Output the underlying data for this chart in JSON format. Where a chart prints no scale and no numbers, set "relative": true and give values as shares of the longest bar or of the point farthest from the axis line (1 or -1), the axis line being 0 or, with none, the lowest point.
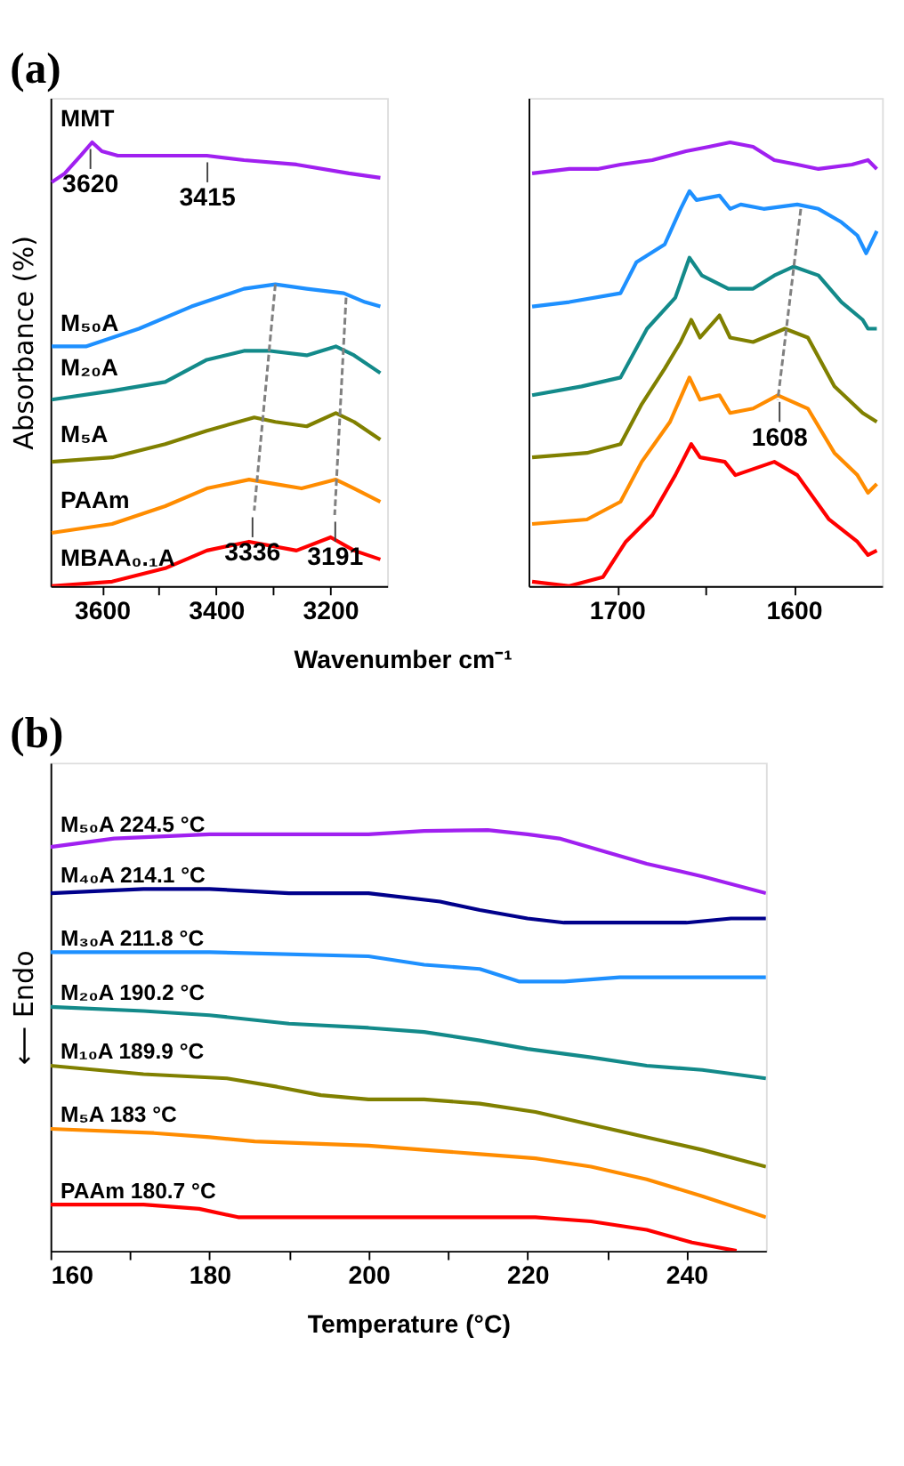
{
  "chart_data": [
    {
      "type": "line",
      "title": "(a)",
      "ylabel": "Absorbance (%)",
      "xlabel": "Wavenumber cm⁻¹",
      "relative": true,
      "legend": false,
      "marker": "none",
      "line_style": "solid",
      "grid": false,
      "xlim": [
        3690,
        3100
      ],
      "xticks": [
        3600,
        {
          "value": 3500,
          "label": null
        },
        3400,
        {
          "value": 3300,
          "label": null
        },
        3200
      ],
      "series": [
        {
          "name": "MMT",
          "color": "#a020f0",
          "x": [
            3688,
            3665,
            3637,
            3617,
            3600,
            3572,
            3489,
            3416,
            3351,
            3259,
            3167,
            3112
          ],
          "values": [
            0.91,
            0.93,
            0.97,
            1.0,
            0.98,
            0.97,
            0.97,
            0.97,
            0.96,
            0.95,
            0.93,
            0.92
          ]
        },
        {
          "name": "M₅₀A",
          "color": "#1e90ff",
          "x": [
            3688,
            3628,
            3535,
            3443,
            3351,
            3296,
            3241,
            3176,
            3139,
            3112
          ],
          "values": [
            0.54,
            0.54,
            0.58,
            0.63,
            0.67,
            0.68,
            0.67,
            0.66,
            0.64,
            0.63
          ]
        },
        {
          "name": "M₂₀A",
          "color": "#138a8a",
          "x": [
            3688,
            3582,
            3489,
            3416,
            3351,
            3305,
            3241,
            3190,
            3158,
            3112
          ],
          "values": [
            0.42,
            0.44,
            0.46,
            0.51,
            0.53,
            0.53,
            0.52,
            0.54,
            0.52,
            0.48
          ]
        },
        {
          "name": "M₅A",
          "color": "#808000",
          "x": [
            3688,
            3582,
            3489,
            3416,
            3333,
            3296,
            3241,
            3190,
            3158,
            3112
          ],
          "values": [
            0.28,
            0.29,
            0.32,
            0.35,
            0.38,
            0.37,
            0.36,
            0.39,
            0.37,
            0.33
          ]
        },
        {
          "name": "PAAm",
          "color": "#ff8c00",
          "x": [
            3688,
            3582,
            3489,
            3416,
            3342,
            3296,
            3250,
            3190,
            3158,
            3112
          ],
          "values": [
            0.12,
            0.14,
            0.18,
            0.22,
            0.24,
            0.23,
            0.22,
            0.24,
            0.22,
            0.19
          ]
        },
        {
          "name": "MBAA₀.₁A",
          "color": "#ff0000",
          "x": [
            3688,
            3582,
            3489,
            3416,
            3342,
            3259,
            3199,
            3158,
            3112
          ],
          "values": [
            0.0,
            0.01,
            0.04,
            0.08,
            0.1,
            0.08,
            0.11,
            0.08,
            0.06
          ]
        },
        {
          "color": "#808080",
          "line_style": "dashed",
          "x": [
            3296,
            3333
          ],
          "values": [
            0.68,
            0.17
          ]
        },
        {
          "color": "#808080",
          "line_style": "dashed",
          "x": [
            3172,
            3192
          ],
          "values": [
            0.65,
            0.16
          ]
        }
      ],
      "annotations": [
        {
          "text": "3620",
          "x": 3620,
          "y": 1.0
        },
        {
          "text": "3415",
          "x": 3415,
          "y": 0.97
        },
        {
          "text": "3336",
          "x": 3336,
          "y": 0.17
        },
        {
          "text": "3191",
          "x": 3191,
          "y": 0.16
        }
      ]
    },
    {
      "type": "line",
      "relative": true,
      "legend": false,
      "marker": "none",
      "line_style": "solid",
      "grid": false,
      "xlim": [
        1750,
        1550
      ],
      "xticks": [
        1700,
        {
          "value": 1650,
          "label": null
        },
        1600
      ],
      "series": [
        {
          "color": "#a020f0",
          "x": [
            1748,
            1727,
            1711,
            1698,
            1680,
            1661,
            1648,
            1636,
            1623,
            1611,
            1598,
            1586,
            1567,
            1558,
            1553
          ],
          "values": [
            0.93,
            0.94,
            0.94,
            0.95,
            0.96,
            0.98,
            0.99,
            1.0,
            0.99,
            0.96,
            0.95,
            0.94,
            0.95,
            0.96,
            0.94
          ]
        },
        {
          "color": "#1e90ff",
          "x": [
            1748,
            1727,
            1698,
            1689,
            1673,
            1664,
            1659,
            1655,
            1642,
            1636,
            1630,
            1617,
            1598,
            1586,
            1573,
            1564,
            1559,
            1553
          ],
          "values": [
            0.63,
            0.64,
            0.66,
            0.73,
            0.77,
            0.85,
            0.89,
            0.87,
            0.88,
            0.85,
            0.86,
            0.85,
            0.86,
            0.85,
            0.82,
            0.79,
            0.75,
            0.8
          ]
        },
        {
          "color": "#138a8a",
          "x": [
            1748,
            1720,
            1698,
            1683,
            1667,
            1659,
            1652,
            1637,
            1623,
            1611,
            1600,
            1586,
            1573,
            1561,
            1558,
            1553
          ],
          "values": [
            0.43,
            0.45,
            0.47,
            0.58,
            0.65,
            0.74,
            0.7,
            0.67,
            0.67,
            0.7,
            0.72,
            0.7,
            0.64,
            0.6,
            0.58,
            0.58
          ]
        },
        {
          "color": "#808000",
          "x": [
            1748,
            1717,
            1698,
            1686,
            1673,
            1664,
            1658,
            1653,
            1642,
            1636,
            1623,
            1605,
            1592,
            1577,
            1561,
            1553
          ],
          "values": [
            0.29,
            0.3,
            0.32,
            0.41,
            0.49,
            0.55,
            0.6,
            0.56,
            0.61,
            0.56,
            0.55,
            0.58,
            0.56,
            0.45,
            0.39,
            0.37
          ]
        },
        {
          "color": "#ff8c00",
          "x": [
            1748,
            1717,
            1698,
            1686,
            1670,
            1659,
            1653,
            1642,
            1636,
            1623,
            1609,
            1592,
            1577,
            1564,
            1558,
            1553
          ],
          "values": [
            0.14,
            0.15,
            0.19,
            0.28,
            0.37,
            0.47,
            0.42,
            0.43,
            0.39,
            0.4,
            0.43,
            0.4,
            0.3,
            0.25,
            0.21,
            0.23
          ]
        },
        {
          "color": "#ff0000",
          "x": [
            1748,
            1727,
            1708,
            1695,
            1680,
            1667,
            1658,
            1653,
            1639,
            1633,
            1611,
            1598,
            1580,
            1564,
            1558,
            1553
          ],
          "values": [
            0.01,
            0.0,
            0.02,
            0.1,
            0.16,
            0.25,
            0.32,
            0.29,
            0.28,
            0.25,
            0.28,
            0.25,
            0.15,
            0.1,
            0.07,
            0.08
          ]
        },
        {
          "color": "#808080",
          "line_style": "dashed",
          "x": [
            1596,
            1609
          ],
          "values": [
            0.85,
            0.42
          ]
        }
      ],
      "annotations": [
        {
          "text": "1608",
          "x": 1608,
          "y": 0.43
        }
      ]
    },
    {
      "type": "line",
      "title": "(b)",
      "ylabel": "⟵ Endo",
      "xlabel": "Temperature (°C)",
      "relative": true,
      "legend": false,
      "marker": "none",
      "line_style": "solid",
      "grid": false,
      "xlim": [
        160,
        250
      ],
      "xticks": [
        160,
        {
          "value": 170,
          "label": null
        },
        180,
        {
          "value": 190,
          "label": null
        },
        200,
        {
          "value": 210,
          "label": null
        },
        220,
        {
          "value": 230,
          "label": null
        },
        240
      ],
      "series": [
        {
          "name": "M₅₀A 224.5 °C",
          "color": "#a020f0",
          "x": [
            160,
            168,
            180,
            200,
            207,
            215,
            220,
            224,
            229.5,
            235,
            242,
            250
          ],
          "values": [
            0.96,
            0.98,
            0.99,
            0.99,
            0.998,
            1.0,
            0.99,
            0.98,
            0.95,
            0.92,
            0.89,
            0.85
          ]
        },
        {
          "name": "M₄₀A 214.1 °C",
          "color": "#00008b",
          "x": [
            160,
            171.7,
            180,
            190,
            200,
            209,
            214,
            220,
            224.6,
            229.5,
            233,
            240,
            245.6,
            250
          ],
          "values": [
            0.85,
            0.86,
            0.86,
            0.85,
            0.85,
            0.83,
            0.81,
            0.79,
            0.78,
            0.78,
            0.78,
            0.78,
            0.79,
            0.79
          ]
        },
        {
          "name": "M₃₀A 211.8 °C",
          "color": "#1e90ff",
          "x": [
            160,
            180,
            200,
            207,
            214,
            219,
            224.6,
            231.6,
            240.7,
            250
          ],
          "values": [
            0.71,
            0.71,
            0.7,
            0.68,
            0.67,
            0.64,
            0.64,
            0.65,
            0.65,
            0.65
          ]
        },
        {
          "name": "M₂₀A 190.2 °C",
          "color": "#138a8a",
          "x": [
            160,
            171.7,
            180,
            190,
            200,
            207,
            214,
            220,
            228,
            235,
            242,
            250
          ],
          "values": [
            0.58,
            0.57,
            0.56,
            0.54,
            0.53,
            0.52,
            0.5,
            0.48,
            0.46,
            0.44,
            0.43,
            0.41
          ]
        },
        {
          "name": "M₁₀A 189.9 °C",
          "color": "#808000",
          "x": [
            160,
            171.7,
            182.2,
            188.5,
            194,
            200,
            207,
            214,
            221,
            228,
            235,
            242,
            250
          ],
          "values": [
            0.44,
            0.42,
            0.41,
            0.39,
            0.37,
            0.36,
            0.36,
            0.35,
            0.33,
            0.3,
            0.27,
            0.24,
            0.2
          ]
        },
        {
          "name": "M₅A 183 °C",
          "color": "#ff8c00",
          "x": [
            160,
            173,
            180,
            185.7,
            200,
            207,
            214,
            221,
            228,
            235,
            242,
            250
          ],
          "values": [
            0.29,
            0.28,
            0.27,
            0.26,
            0.25,
            0.24,
            0.23,
            0.22,
            0.2,
            0.17,
            0.13,
            0.08
          ]
        },
        {
          "name": "PAAm 180.7 °C",
          "color": "#ff0000",
          "x": [
            160,
            171.7,
            178.7,
            183.6,
            192.7,
            200,
            207,
            221,
            228,
            235,
            240.7,
            246.3
          ],
          "values": [
            0.11,
            0.11,
            0.1,
            0.08,
            0.08,
            0.08,
            0.08,
            0.08,
            0.07,
            0.05,
            0.02,
            0.0
          ]
        }
      ]
    }
  ]
}
